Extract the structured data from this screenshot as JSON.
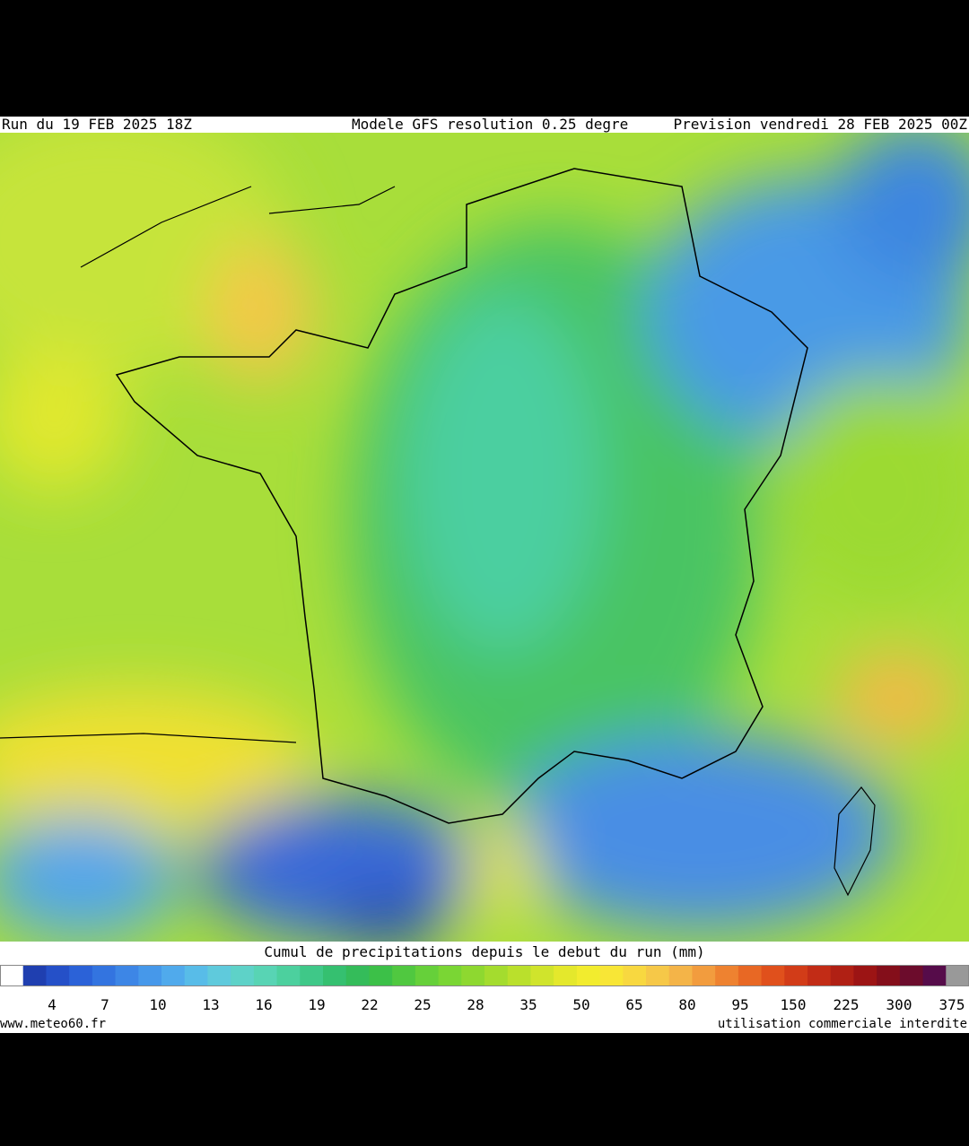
{
  "header": {
    "run": "Run du 19 FEB 2025 18Z",
    "model": "Modele GFS resolution 0.25 degre",
    "forecast": "Prevision vendredi 28 FEB 2025 00Z"
  },
  "legend": {
    "title": "Cumul de precipitations depuis le debut du run (mm)",
    "ticks": [
      4,
      7,
      10,
      13,
      16,
      19,
      22,
      25,
      28,
      35,
      50,
      65,
      80,
      95,
      150,
      225,
      300,
      375
    ],
    "colors": [
      "#ffffff",
      "#1f3fb0",
      "#2550c8",
      "#2b62d8",
      "#3374e0",
      "#3d86e6",
      "#4698ea",
      "#50aaec",
      "#58bce8",
      "#5fcadc",
      "#5ed2c8",
      "#58d4b4",
      "#4cd09e",
      "#3fc888",
      "#35c070",
      "#34bc5a",
      "#3cc048",
      "#50c840",
      "#66d03a",
      "#7ad634",
      "#8ed830",
      "#a4dc2e",
      "#bae02c",
      "#d0e42c",
      "#e4e82c",
      "#f2ec2e",
      "#f8e636",
      "#f8d840",
      "#f6c848",
      "#f4b448",
      "#f29c3e",
      "#ee8230",
      "#e86824",
      "#e0501c",
      "#d23c18",
      "#c22c16",
      "#b02014",
      "#9c1414",
      "#840e1a",
      "#6c0c2c",
      "#560c4a",
      "#999999"
    ]
  },
  "footer": {
    "site": "www.meteo60.fr",
    "notice": "utilisation commerciale interdite"
  }
}
